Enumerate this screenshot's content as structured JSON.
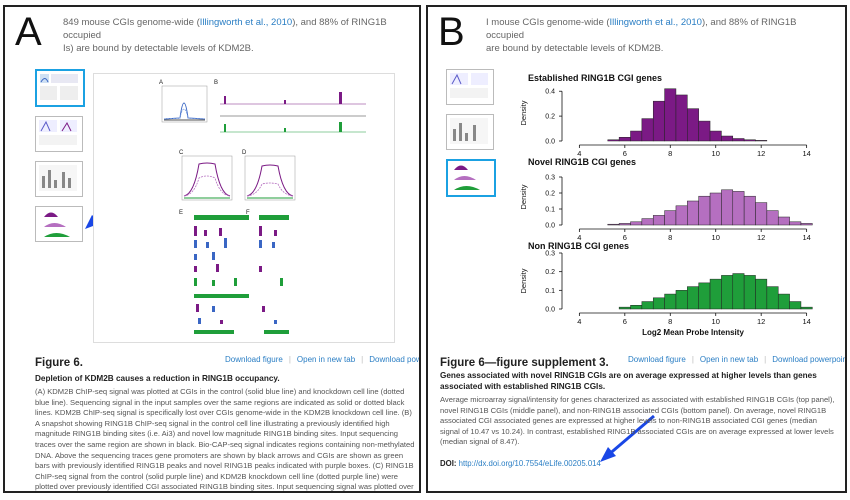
{
  "panelA": {
    "letter": "A",
    "header_pre": "849 mouse CGIs genome-wide (",
    "header_link": "Illingworth et al., 2010",
    "header_post": "), and 88% of RING1B occupied",
    "header_line2": "Is) are bound by detectable levels of KDM2B.",
    "figure": {
      "title": "Figure 6.",
      "links": [
        "Download figure",
        "Open in new tab",
        "Download powerpoint"
      ],
      "subtitle": "Depletion of KDM2B causes a reduction in RING1B occupancy.",
      "body": "(A) KDM2B ChIP-seq signal was plotted at CGIs in the control (solid blue line) and knockdown cell line (dotted blue line). Sequencing signal in the input samples over the same regions are indicated as solid or dotted black lines. KDM2B ChIP-seq signal is specifically lost over CGIs genome-wide in the KDM2B knockdown cell line. (B) A snapshot showing RING1B ChIP-seq signal in the control cell line illustrating a previously identified high magnitude RING1B binding sites (i.e. Ai3) and novel low magnitude RING1B binding sites. Input sequencing traces over the same region are shown in black. Bio-CAP-seq signal indicates regions containing non-methylated DNA. Above the sequencing traces gene promoters are shown by black arrows and CGIs are shown as green bars with previously identified RING1B peaks and novel RING1B peaks indicated with purple boxes. (C) RING1B ChIP-seq signal from the control (solid purple line) and KDM2B knockdown cell line (dotted purple line) were plotted over previously identified CGI associated RING1B binding sites. Input sequencing signal was plotted over"
    }
  },
  "panelB": {
    "letter": "B",
    "header_pre": "I mouse CGIs genome-wide (",
    "header_link": "Illingworth et al., 2010",
    "header_post": "), and 88% of RING1B occupied",
    "header_line2": "are bound by detectable levels of KDM2B.",
    "figure": {
      "title": "Figure 6—figure supplement 3.",
      "links": [
        "Download figure",
        "Open in new tab",
        "Download powerpoint"
      ],
      "subtitle": "Genes associated with novel RING1B CGIs are on average expressed at higher levels than genes associated with established RING1B CGIs.",
      "body": "Average microarray signal/intensity for genes characterized as associated with established RING1B CGIs (top panel), novel RING1B CGIs (middle panel), and non-RING1B associated CGIs (bottom panel). On average, novel RING1B associated CGI associated genes are expressed at higher levels to non-RING1B associated CGI genes (median signal of 10.47 vs 10.24). In contrast, established RING1B associated CGIs are on average expressed at lower levels (median signal of 8.47).",
      "doi_label": "DOI:",
      "doi_link": "http://dx.doi.org/10.7554/eLife.00205.014"
    }
  },
  "chart_data": [
    {
      "type": "bar",
      "title": "Established RING1B CGI genes",
      "ylabel": "Density",
      "color": "#7b1a85",
      "x": [
        5.5,
        6.0,
        6.5,
        7.0,
        7.5,
        8.0,
        8.5,
        9.0,
        9.5,
        10.0,
        10.5,
        11.0,
        11.5,
        12.0
      ],
      "values": [
        0.01,
        0.03,
        0.08,
        0.18,
        0.32,
        0.42,
        0.37,
        0.26,
        0.16,
        0.08,
        0.04,
        0.02,
        0.01,
        0.005
      ],
      "xlim": [
        3.5,
        14.5
      ],
      "ylim": [
        0,
        0.45
      ],
      "yticks": [
        0.0,
        0.2,
        0.4
      ],
      "xticks": [
        4,
        6,
        8,
        10,
        12,
        14
      ]
    },
    {
      "type": "bar",
      "title": "Novel RING1B CGI genes",
      "ylabel": "Density",
      "color": "#b56fc0",
      "x": [
        5.5,
        6.0,
        6.5,
        7.0,
        7.5,
        8.0,
        8.5,
        9.0,
        9.5,
        10.0,
        10.5,
        11.0,
        11.5,
        12.0,
        12.5,
        13.0,
        13.5,
        14.0
      ],
      "values": [
        0.005,
        0.01,
        0.02,
        0.04,
        0.06,
        0.09,
        0.12,
        0.15,
        0.18,
        0.2,
        0.22,
        0.21,
        0.18,
        0.14,
        0.09,
        0.05,
        0.02,
        0.01
      ],
      "xlim": [
        3.5,
        14.5
      ],
      "ylim": [
        0,
        0.35
      ],
      "yticks": [
        0.0,
        0.1,
        0.2,
        0.3
      ],
      "xticks": [
        4,
        6,
        8,
        10,
        12,
        14
      ]
    },
    {
      "type": "bar",
      "title": "Non RING1B CGI genes",
      "ylabel": "Density",
      "xlabel": "Log2 Mean Probe Intensity",
      "color": "#1f9e3a",
      "x": [
        6.0,
        6.5,
        7.0,
        7.5,
        8.0,
        8.5,
        9.0,
        9.5,
        10.0,
        10.5,
        11.0,
        11.5,
        12.0,
        12.5,
        13.0,
        13.5,
        14.0
      ],
      "values": [
        0.01,
        0.02,
        0.04,
        0.06,
        0.08,
        0.1,
        0.12,
        0.14,
        0.16,
        0.18,
        0.19,
        0.18,
        0.16,
        0.12,
        0.08,
        0.04,
        0.01
      ],
      "xlim": [
        3.5,
        14.5
      ],
      "ylim": [
        0,
        0.3
      ],
      "yticks": [
        0.0,
        0.1,
        0.2,
        0.3
      ],
      "xticks": [
        4,
        6,
        8,
        10,
        12,
        14
      ]
    }
  ]
}
